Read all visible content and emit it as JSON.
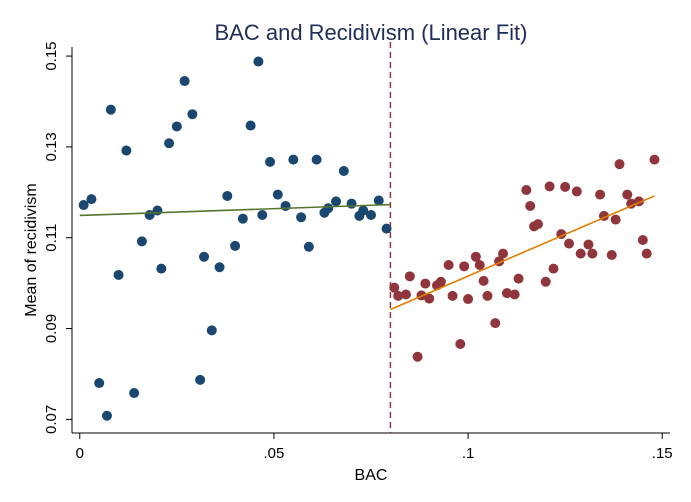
{
  "colors": {
    "series_below": "#1a476f",
    "series_above": "#90353b",
    "fit_below": "#55752f",
    "fit_above": "#e37e00",
    "cutoff": "#90353b",
    "axis": "#000000",
    "title": "#1f2d5a"
  },
  "chart_data": {
    "type": "scatter",
    "title": "BAC and Recidivism (Linear Fit)",
    "xlabel": "BAC",
    "ylabel": "Mean of recidivism",
    "xlim": [
      -0.002,
      0.152
    ],
    "ylim": [
      0.067,
      0.152
    ],
    "x_ticks": [
      {
        "value": 0,
        "label": "0"
      },
      {
        "value": 0.05,
        "label": ".05"
      },
      {
        "value": 0.1,
        "label": ".1"
      },
      {
        "value": 0.15,
        "label": ".15"
      }
    ],
    "y_ticks": [
      {
        "value": 0.07,
        "label": "0.07"
      },
      {
        "value": 0.09,
        "label": "0.09"
      },
      {
        "value": 0.11,
        "label": "0.11"
      },
      {
        "value": 0.13,
        "label": "0.13"
      },
      {
        "value": 0.15,
        "label": "0.15"
      }
    ],
    "grid": false,
    "cutoff": 0.08,
    "series": [
      {
        "key": "below",
        "points": [
          [
            0.001,
            0.1172
          ],
          [
            0.003,
            0.1185
          ],
          [
            0.005,
            0.078
          ],
          [
            0.007,
            0.0708
          ],
          [
            0.008,
            0.1382
          ],
          [
            0.01,
            0.1018
          ],
          [
            0.012,
            0.1292
          ],
          [
            0.014,
            0.0758
          ],
          [
            0.016,
            0.1092
          ],
          [
            0.018,
            0.115
          ],
          [
            0.02,
            0.116
          ],
          [
            0.021,
            0.1032
          ],
          [
            0.023,
            0.1308
          ],
          [
            0.025,
            0.1345
          ],
          [
            0.027,
            0.1445
          ],
          [
            0.029,
            0.1372
          ],
          [
            0.031,
            0.0787
          ],
          [
            0.032,
            0.1058
          ],
          [
            0.034,
            0.0896
          ],
          [
            0.036,
            0.1035
          ],
          [
            0.038,
            0.1192
          ],
          [
            0.04,
            0.1082
          ],
          [
            0.042,
            0.1142
          ],
          [
            0.044,
            0.1347
          ],
          [
            0.046,
            0.1488
          ],
          [
            0.047,
            0.115
          ],
          [
            0.049,
            0.1267
          ],
          [
            0.051,
            0.1195
          ],
          [
            0.053,
            0.117
          ],
          [
            0.055,
            0.1272
          ],
          [
            0.057,
            0.1145
          ],
          [
            0.059,
            0.108
          ],
          [
            0.061,
            0.1272
          ],
          [
            0.063,
            0.1155
          ],
          [
            0.064,
            0.1165
          ],
          [
            0.066,
            0.118
          ],
          [
            0.068,
            0.1247
          ],
          [
            0.07,
            0.1175
          ],
          [
            0.072,
            0.1148
          ],
          [
            0.073,
            0.116
          ],
          [
            0.075,
            0.115
          ],
          [
            0.077,
            0.1182
          ],
          [
            0.079,
            0.112
          ]
        ],
        "fit": [
          [
            0.0,
            0.1149
          ],
          [
            0.08,
            0.1173
          ]
        ]
      },
      {
        "key": "above",
        "points": [
          [
            0.081,
            0.099
          ],
          [
            0.082,
            0.0972
          ],
          [
            0.084,
            0.0975
          ],
          [
            0.085,
            0.1015
          ],
          [
            0.087,
            0.0838
          ],
          [
            0.088,
            0.0973
          ],
          [
            0.089,
            0.0999
          ],
          [
            0.09,
            0.0966
          ],
          [
            0.092,
            0.0995
          ],
          [
            0.093,
            0.1003
          ],
          [
            0.095,
            0.104
          ],
          [
            0.096,
            0.0972
          ],
          [
            0.098,
            0.0866
          ],
          [
            0.099,
            0.1037
          ],
          [
            0.1,
            0.0965
          ],
          [
            0.102,
            0.1058
          ],
          [
            0.103,
            0.104
          ],
          [
            0.104,
            0.1005
          ],
          [
            0.105,
            0.0972
          ],
          [
            0.107,
            0.0912
          ],
          [
            0.108,
            0.1048
          ],
          [
            0.109,
            0.1065
          ],
          [
            0.11,
            0.0978
          ],
          [
            0.112,
            0.0975
          ],
          [
            0.113,
            0.101
          ],
          [
            0.115,
            0.1205
          ],
          [
            0.116,
            0.117
          ],
          [
            0.117,
            0.1125
          ],
          [
            0.118,
            0.113
          ],
          [
            0.12,
            0.1003
          ],
          [
            0.121,
            0.1213
          ],
          [
            0.122,
            0.1032
          ],
          [
            0.124,
            0.1108
          ],
          [
            0.125,
            0.1212
          ],
          [
            0.126,
            0.1087
          ],
          [
            0.128,
            0.1202
          ],
          [
            0.129,
            0.1065
          ],
          [
            0.131,
            0.1085
          ],
          [
            0.132,
            0.1065
          ],
          [
            0.134,
            0.1195
          ],
          [
            0.135,
            0.1148
          ],
          [
            0.137,
            0.1062
          ],
          [
            0.138,
            0.114
          ],
          [
            0.139,
            0.1262
          ],
          [
            0.141,
            0.1195
          ],
          [
            0.142,
            0.1175
          ],
          [
            0.144,
            0.118
          ],
          [
            0.145,
            0.1095
          ],
          [
            0.146,
            0.1065
          ],
          [
            0.148,
            0.1272
          ]
        ],
        "fit": [
          [
            0.08,
            0.0942
          ],
          [
            0.148,
            0.1192
          ]
        ]
      }
    ]
  }
}
